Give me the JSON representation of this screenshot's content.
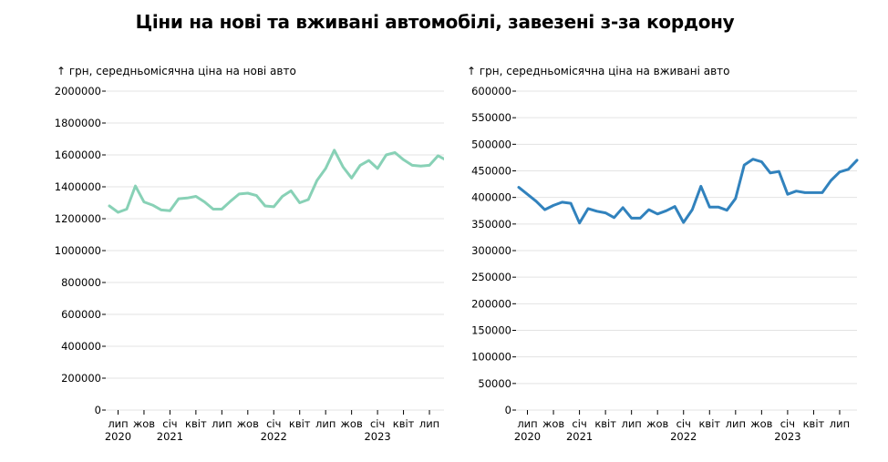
{
  "title": "Ціни на нові та вживані автомобілі, завезені з-за кордону",
  "chart_data": [
    {
      "type": "line",
      "ylabel": "↑ грн, середньомісячна ціна на нові авто",
      "ylim": [
        0,
        2000000
      ],
      "yticks": [
        0,
        200000,
        400000,
        600000,
        800000,
        1000000,
        1200000,
        1400000,
        1600000,
        1800000,
        2000000
      ],
      "grid": true,
      "color": "#88d1b6",
      "x": [
        "2020-06",
        "2020-07",
        "2020-08",
        "2020-09",
        "2020-10",
        "2020-11",
        "2020-12",
        "2021-01",
        "2021-02",
        "2021-03",
        "2021-04",
        "2021-05",
        "2021-06",
        "2021-07",
        "2021-08",
        "2021-09",
        "2021-10",
        "2021-11",
        "2021-12",
        "2022-01",
        "2022-02",
        "2022-03",
        "2022-04",
        "2022-05",
        "2022-06",
        "2022-07",
        "2022-08",
        "2022-09",
        "2022-10",
        "2022-11",
        "2022-12",
        "2023-01",
        "2023-02",
        "2023-03",
        "2023-04",
        "2023-05",
        "2023-06",
        "2023-07",
        "2023-08",
        "2023-09"
      ],
      "values": [
        1280000,
        1240000,
        1260000,
        1405000,
        1305000,
        1285000,
        1255000,
        1250000,
        1325000,
        1330000,
        1340000,
        1305000,
        1260000,
        1260000,
        1310000,
        1355000,
        1360000,
        1345000,
        1280000,
        1275000,
        1340000,
        1375000,
        1300000,
        1320000,
        1440000,
        1515000,
        1630000,
        1525000,
        1455000,
        1535000,
        1565000,
        1515000,
        1600000,
        1615000,
        1570000,
        1535000,
        1530000,
        1535000,
        1595000,
        1565000
      ],
      "xticks": [
        {
          "date": "2020-07",
          "label": "лип",
          "year": "2020"
        },
        {
          "date": "2020-10",
          "label": "жов"
        },
        {
          "date": "2021-01",
          "label": "січ",
          "year": "2021"
        },
        {
          "date": "2021-04",
          "label": "квіт"
        },
        {
          "date": "2021-07",
          "label": "лип"
        },
        {
          "date": "2021-10",
          "label": "жов"
        },
        {
          "date": "2022-01",
          "label": "січ",
          "year": "2022"
        },
        {
          "date": "2022-04",
          "label": "квіт"
        },
        {
          "date": "2022-07",
          "label": "лип"
        },
        {
          "date": "2022-10",
          "label": "жов"
        },
        {
          "date": "2023-01",
          "label": "січ",
          "year": "2023"
        },
        {
          "date": "2023-04",
          "label": "квіт"
        },
        {
          "date": "2023-07",
          "label": "лип"
        }
      ]
    },
    {
      "type": "line",
      "ylabel": "↑ грн, середньомісячна ціна на вживані авто",
      "ylim": [
        0,
        600000
      ],
      "yticks": [
        0,
        50000,
        100000,
        150000,
        200000,
        250000,
        300000,
        350000,
        400000,
        450000,
        500000,
        550000,
        600000
      ],
      "grid": true,
      "color": "#3182bd",
      "x": [
        "2020-06",
        "2020-07",
        "2020-08",
        "2020-09",
        "2020-10",
        "2020-11",
        "2020-12",
        "2021-01",
        "2021-02",
        "2021-03",
        "2021-04",
        "2021-05",
        "2021-06",
        "2021-07",
        "2021-08",
        "2021-09",
        "2021-10",
        "2021-11",
        "2021-12",
        "2022-01",
        "2022-02",
        "2022-03",
        "2022-04",
        "2022-05",
        "2022-06",
        "2022-07",
        "2022-08",
        "2022-09",
        "2022-10",
        "2022-11",
        "2022-12",
        "2023-01",
        "2023-02",
        "2023-03",
        "2023-04",
        "2023-05",
        "2023-06",
        "2023-07",
        "2023-08",
        "2023-09"
      ],
      "values": [
        419000,
        406000,
        393000,
        377000,
        385000,
        391000,
        389000,
        352000,
        379000,
        374000,
        371000,
        362000,
        381000,
        361000,
        361000,
        377000,
        369000,
        375000,
        383000,
        353000,
        377000,
        421000,
        382000,
        382000,
        376000,
        398000,
        461000,
        472000,
        467000,
        446000,
        449000,
        406000,
        412000,
        409000,
        409000,
        409000,
        432000,
        448000,
        453000,
        470000
      ],
      "xticks": [
        {
          "date": "2020-07",
          "label": "лип",
          "year": "2020"
        },
        {
          "date": "2020-10",
          "label": "жов"
        },
        {
          "date": "2021-01",
          "label": "січ",
          "year": "2021"
        },
        {
          "date": "2021-04",
          "label": "квіт"
        },
        {
          "date": "2021-07",
          "label": "лип"
        },
        {
          "date": "2021-10",
          "label": "жов"
        },
        {
          "date": "2022-01",
          "label": "січ",
          "year": "2022"
        },
        {
          "date": "2022-04",
          "label": "квіт"
        },
        {
          "date": "2022-07",
          "label": "лип"
        },
        {
          "date": "2022-10",
          "label": "жов"
        },
        {
          "date": "2023-01",
          "label": "січ",
          "year": "2023"
        },
        {
          "date": "2023-04",
          "label": "квіт"
        },
        {
          "date": "2023-07",
          "label": "лип"
        }
      ]
    }
  ]
}
